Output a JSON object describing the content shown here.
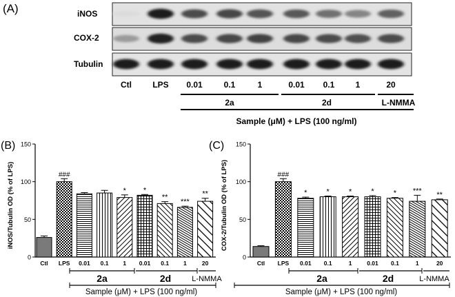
{
  "figure": {
    "panel_a": {
      "label": "(A)",
      "blot_rows": [
        "iNOS",
        "COX-2",
        "Tubulin"
      ],
      "lane_labels": [
        "Ctl",
        "LPS",
        "0.01",
        "0.1",
        "1",
        "0.01",
        "0.1",
        "1",
        "20"
      ],
      "groups": [
        "2a",
        "2d",
        "L-NMMA"
      ],
      "caption": "Sample (μM) + LPS (100 ng/ml)",
      "band_intensity": {
        "iNOS": [
          0.05,
          0.95,
          0.72,
          0.74,
          0.68,
          0.66,
          0.55,
          0.45,
          0.62
        ],
        "COX-2": [
          0.35,
          0.92,
          0.72,
          0.74,
          0.76,
          0.74,
          0.72,
          0.7,
          0.72
        ],
        "Tubulin": [
          0.95,
          0.95,
          0.95,
          0.95,
          0.95,
          0.95,
          0.95,
          0.95,
          0.95
        ]
      }
    }
  },
  "chart_data": [
    {
      "type": "bar",
      "panel_label": "(B)",
      "ylabel": "iNOS/Tubulin OD (% of LPS)",
      "yticks": [
        "0",
        "50",
        "100",
        "150"
      ],
      "ylim": [
        0,
        150
      ],
      "categories": [
        "Ctl",
        "LPS",
        "0.01",
        "0.1",
        "1",
        "0.01",
        "0.1",
        "1",
        "20"
      ],
      "values": [
        26,
        100,
        84,
        85,
        79,
        82,
        71,
        66,
        74
      ],
      "errors": [
        2,
        4,
        1.5,
        3.5,
        3.5,
        1,
        2.5,
        1.5,
        4
      ],
      "annotations": [
        "",
        "###",
        "",
        "",
        "*",
        "*",
        "**",
        "***",
        "**"
      ],
      "groups": [
        "2a",
        "2d",
        "L-NMMA"
      ],
      "caption": "Sample (μM) + LPS (100 ng/ml)",
      "grid": false
    },
    {
      "type": "bar",
      "panel_label": "(C)",
      "ylabel": "COX-2/Tubulin OD (% of LPS)",
      "yticks": [
        "0",
        "50",
        "100",
        "150"
      ],
      "ylim": [
        0,
        150
      ],
      "categories": [
        "Ctl",
        "LPS",
        "0.01",
        "0.1",
        "1",
        "0.01",
        "0.1",
        "1",
        "20"
      ],
      "values": [
        14,
        100,
        78,
        80,
        80,
        80,
        78,
        74,
        76
      ],
      "errors": [
        1,
        4,
        1.5,
        1,
        1,
        1.5,
        1,
        8,
        1
      ],
      "annotations": [
        "",
        "###",
        "*",
        "*",
        "*",
        "*",
        "*",
        "***",
        "**"
      ],
      "groups": [
        "2a",
        "2d",
        "L-NMMA"
      ],
      "caption": "Sample (μM) + LPS (100 ng/ml)",
      "grid": false
    }
  ]
}
